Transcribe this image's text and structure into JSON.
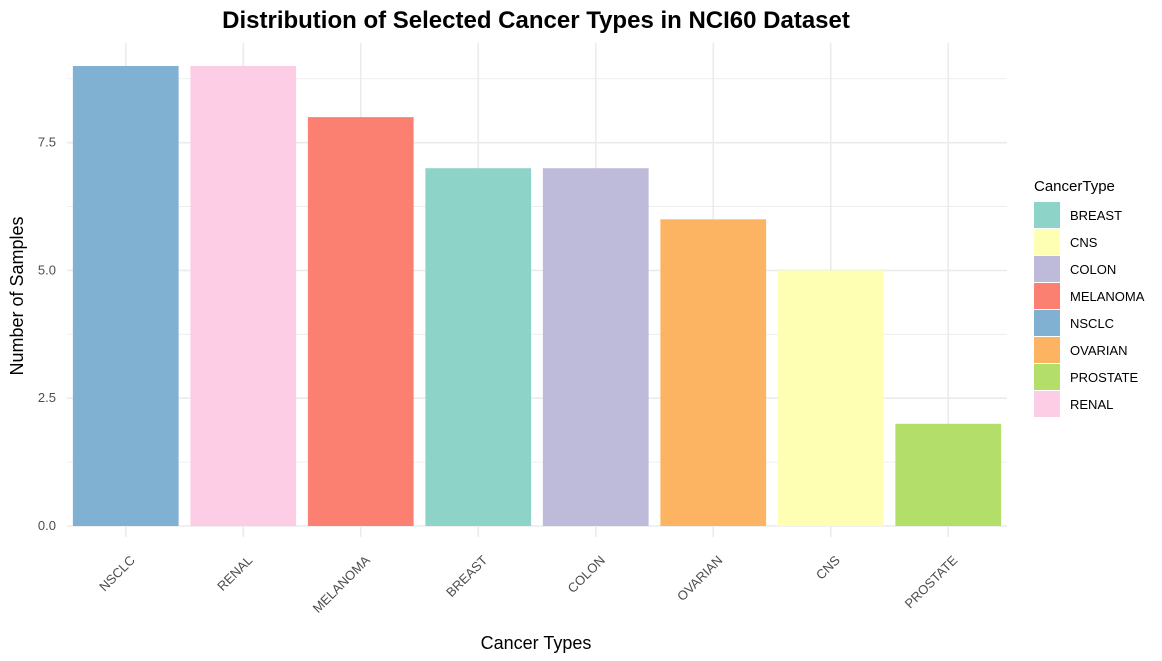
{
  "chart_data": {
    "type": "bar",
    "title": "Distribution of Selected Cancer Types in NCI60 Dataset",
    "xlabel": "Cancer Types",
    "ylabel": "Number of Samples",
    "categories": [
      "NSCLC",
      "RENAL",
      "MELANOMA",
      "BREAST",
      "COLON",
      "OVARIAN",
      "CNS",
      "PROSTATE"
    ],
    "values": [
      9,
      9,
      8,
      7,
      7,
      6,
      5,
      2
    ],
    "colors": [
      "#80b1d3",
      "#fccde5",
      "#fb8072",
      "#8dd3c7",
      "#bebada",
      "#fdb462",
      "#ffffb3",
      "#b3de69"
    ],
    "ylim": [
      0,
      9.45
    ],
    "yticks": [
      0,
      2.5,
      5,
      7.5
    ],
    "ytick_labels": [
      "0.0",
      "2.5",
      "5.0",
      "7.5"
    ],
    "grid": true,
    "legend": {
      "title": "CancerType",
      "placement": "right",
      "items": [
        {
          "label": "BREAST",
          "color": "#8dd3c7"
        },
        {
          "label": "CNS",
          "color": "#ffffb3"
        },
        {
          "label": "COLON",
          "color": "#bebada"
        },
        {
          "label": "MELANOMA",
          "color": "#fb8072"
        },
        {
          "label": "NSCLC",
          "color": "#80b1d3"
        },
        {
          "label": "OVARIAN",
          "color": "#fdb462"
        },
        {
          "label": "PROSTATE",
          "color": "#b3de69"
        },
        {
          "label": "RENAL",
          "color": "#fccde5"
        }
      ]
    }
  }
}
